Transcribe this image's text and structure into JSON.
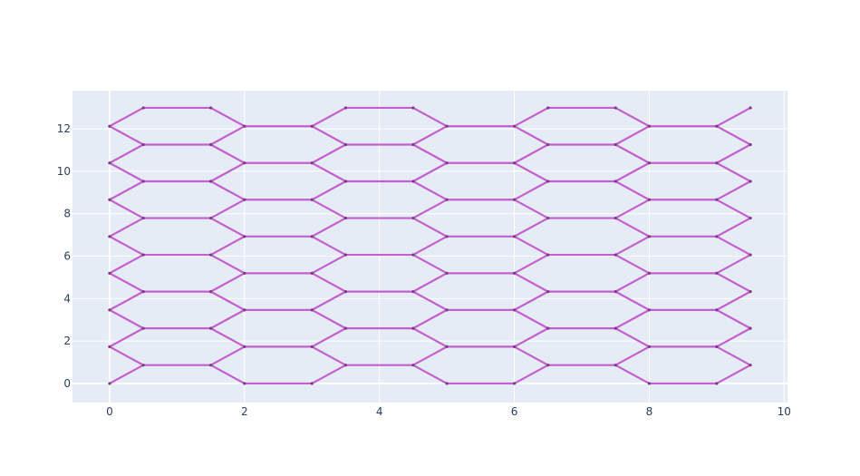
{
  "chart_data": {
    "type": "line",
    "title": "",
    "xlabel": "",
    "ylabel": "",
    "xlim": [
      -0.55,
      10.05
    ],
    "ylim": [
      -0.9,
      13.8
    ],
    "x_ticks": [
      0,
      2,
      4,
      6,
      8,
      10
    ],
    "y_ticks": [
      0,
      2,
      4,
      6,
      8,
      10,
      12
    ],
    "grid": true,
    "legend": "none",
    "colors": {
      "plot_background": "#e5ecf6",
      "grid": "#ffffff",
      "line": "#c45fce",
      "marker": "#7d3a85",
      "tick_text": "#2a3f5f"
    },
    "series": [
      {
        "description_of_structure": "hexagonal lattice edges; lattice constant 1; columns x at 0,0.5,1.5,2,3,3.5,4.5,5,6,6.5,7.5,8,9,9.5; rows y = k*sqrt(3)/2 for k=0..15",
        "x_columns": [
          0,
          0.5,
          1.5,
          2,
          3,
          3.5,
          4.5,
          5,
          6,
          6.5,
          7.5,
          8,
          9,
          9.5
        ],
        "row_spacing": 0.866,
        "rows": 16
      }
    ]
  }
}
